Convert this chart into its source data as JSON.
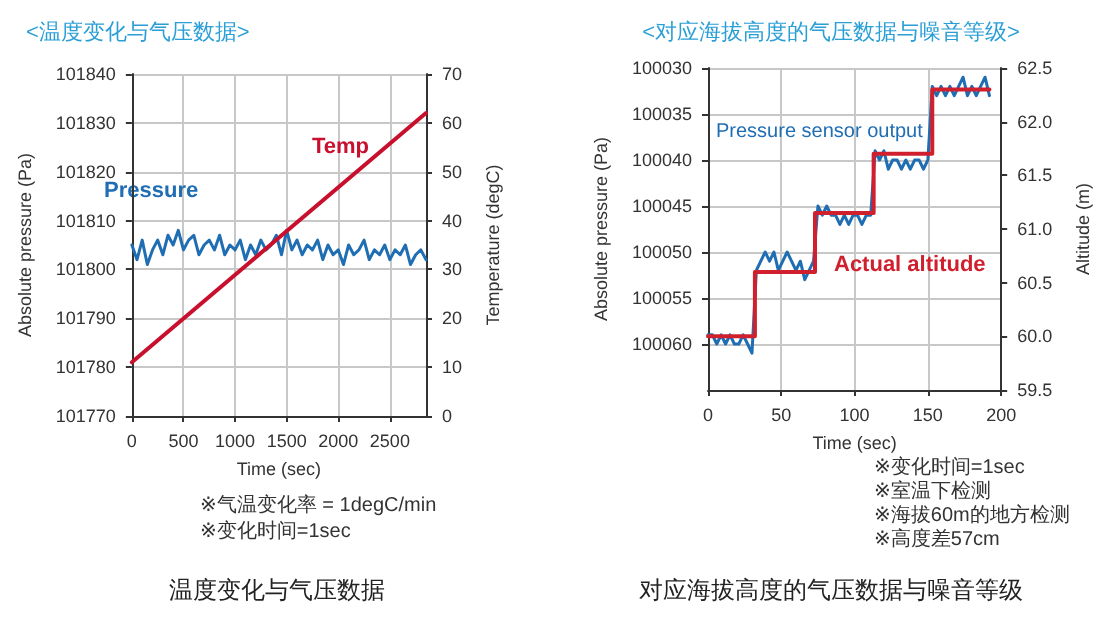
{
  "chart_data": [
    {
      "type": "line",
      "title": "<温度变化与气压数据>",
      "xlabel": "Time (sec)",
      "ylabel": "Absolute pressure (Pa)",
      "y2label": "Temperature (degC)",
      "xlim": [
        0,
        2850
      ],
      "xticks": [
        0,
        500,
        1000,
        1500,
        2000,
        2500
      ],
      "ylim": [
        101770,
        101840
      ],
      "yticks": [
        101770,
        101780,
        101790,
        101800,
        101810,
        101820,
        101830,
        101840
      ],
      "y2lim": [
        0,
        70
      ],
      "y2ticks": [
        0,
        10,
        20,
        30,
        40,
        50,
        60,
        70
      ],
      "grid": true,
      "marker": "none",
      "series": [
        {
          "name": "Pressure",
          "color": "#1f6db3",
          "x": [
            0,
            50,
            100,
            150,
            200,
            250,
            300,
            350,
            400,
            450,
            500,
            550,
            600,
            650,
            700,
            750,
            800,
            850,
            900,
            950,
            1000,
            1050,
            1100,
            1150,
            1200,
            1250,
            1300,
            1350,
            1400,
            1450,
            1500,
            1550,
            1600,
            1650,
            1700,
            1750,
            1800,
            1850,
            1900,
            1950,
            2000,
            2050,
            2100,
            2150,
            2200,
            2250,
            2300,
            2350,
            2400,
            2450,
            2500,
            2550,
            2600,
            2650,
            2700,
            2750,
            2800,
            2850
          ],
          "values": [
            101805,
            101802,
            101806,
            101801,
            101804,
            101806,
            101803,
            101807,
            101805,
            101808,
            101804,
            101806,
            101807,
            101803,
            101805,
            101806,
            101804,
            101807,
            101803,
            101805,
            101804,
            101806,
            101802,
            101805,
            101803,
            101806,
            101804,
            101805,
            101807,
            101803,
            101808,
            101804,
            101806,
            101803,
            101805,
            101804,
            101806,
            101802,
            101805,
            101803,
            101804,
            101801,
            101805,
            101803,
            101804,
            101806,
            101802,
            101804,
            101803,
            101805,
            101802,
            101804,
            101803,
            101805,
            101801,
            101803,
            101804,
            101802
          ]
        },
        {
          "name": "Temp",
          "color": "#c8102e",
          "axis": "y2",
          "x": [
            0,
            2850
          ],
          "values": [
            11,
            62
          ]
        }
      ],
      "annotations": [
        "※气温变化率 = 1degC/min",
        "※变化时间=1sec",
        "温度变化与气压数据"
      ]
    },
    {
      "type": "line",
      "title": "<对应海拔高度的气压数据与噪音等级>",
      "xlabel": "Time (sec)",
      "ylabel": "Absolute pressure (Pa)",
      "y2label": "Altitude (m)",
      "xlim": [
        0,
        200
      ],
      "xticks": [
        0,
        50,
        100,
        150,
        200
      ],
      "ylim": [
        100065,
        100030
      ],
      "yticks": [
        100030,
        100035,
        100040,
        100045,
        100050,
        100055,
        100060
      ],
      "y2lim": [
        59.5,
        62.5
      ],
      "y2ticks": [
        59.5,
        {
          "value": 60,
          "label": "60.0"
        },
        60.5,
        {
          "value": 61,
          "label": "61.0"
        },
        61.5,
        {
          "value": 62,
          "label": "62.0"
        },
        62.5
      ],
      "grid": true,
      "marker": "none",
      "series": [
        {
          "name": "Pressure sensor output",
          "color": "#1f6db3",
          "x": [
            0,
            3,
            6,
            9,
            12,
            15,
            18,
            21,
            24,
            27,
            30,
            33,
            36,
            39,
            42,
            45,
            48,
            51,
            54,
            57,
            60,
            63,
            66,
            69,
            72,
            75,
            78,
            81,
            84,
            87,
            90,
            93,
            96,
            99,
            102,
            105,
            108,
            111,
            114,
            117,
            120,
            123,
            126,
            129,
            132,
            135,
            138,
            141,
            144,
            147,
            150,
            153,
            156,
            159,
            162,
            165,
            168,
            171,
            174,
            177,
            180,
            183,
            186,
            189,
            192
          ],
          "values": [
            100059,
            100059,
            100060,
            100059,
            100060,
            100059,
            100060,
            100060,
            100059,
            100060,
            100061,
            100052,
            100051,
            100050,
            100051,
            100050,
            100052,
            100051,
            100050,
            100051,
            100052,
            100051,
            100053,
            100052,
            100051,
            100045,
            100046,
            100045,
            100046,
            100046,
            100047,
            100046,
            100047,
            100046,
            100046,
            100047,
            100046,
            100046,
            100039,
            100040,
            100039,
            100041,
            100040,
            100040,
            100041,
            100040,
            100041,
            100040,
            100040,
            100041,
            100040,
            100032,
            100033,
            100032,
            100033,
            100032,
            100033,
            100032,
            100031,
            100033,
            100032,
            100033,
            100032,
            100031,
            100033
          ]
        },
        {
          "name": "Actual altitude",
          "type": "step",
          "color": "#d0202e",
          "axis": "y2",
          "x": [
            0,
            32,
            73,
            113,
            153,
            192
          ],
          "values": [
            60.0,
            60.6,
            61.15,
            61.7,
            62.3,
            62.3
          ]
        }
      ],
      "annotations": [
        "※变化时间=1sec",
        "※室温下检测",
        "※海拔60m的地方检测",
        "※高度差57cm",
        "对应海拔高度的气压数据与噪音等级"
      ]
    }
  ]
}
